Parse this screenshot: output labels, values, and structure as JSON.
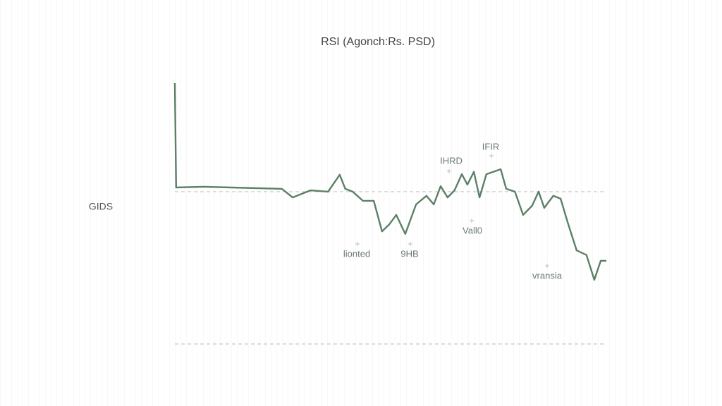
{
  "chart_data": {
    "type": "line",
    "title": "RSI (Agonch:Rs. PSD)",
    "y_label": "GIDS",
    "series": [
      {
        "color": "#5b8066",
        "x": [
          0,
          0.3,
          6.7,
          13.1,
          19.6,
          24.8,
          27.3,
          31.4,
          35.5,
          38.2,
          39.5,
          41.2,
          43.6,
          46.1,
          48.0,
          49.7,
          51.3,
          53.4,
          55.9,
          58.3,
          60.0,
          61.6,
          63.2,
          64.8,
          66.5,
          67.8,
          69.3,
          70.6,
          72.2,
          75.5,
          76.8,
          78.8,
          80.7,
          82.8,
          84.3,
          85.6,
          87.7,
          89.4,
          91.0,
          93.1,
          95.4,
          97.2,
          98.7,
          100
        ],
        "values": [
          100,
          60,
          60.3,
          60,
          59.7,
          59.5,
          56.2,
          58.9,
          58.4,
          64.9,
          59.5,
          58.4,
          54.9,
          54.9,
          43.2,
          45.9,
          49.5,
          42.2,
          53.5,
          56.8,
          53.5,
          60.5,
          56.2,
          58.9,
          65.1,
          61.1,
          66,
          56.2,
          65.1,
          67,
          59.5,
          58.4,
          49.5,
          53,
          58.4,
          52.2,
          56.8,
          55.7,
          46.8,
          35.9,
          34.1,
          24.6,
          31.9,
          31.9
        ]
      }
    ],
    "xlim": [
      0,
      100
    ],
    "ylim": [
      0,
      100
    ],
    "reference_lines": [
      58.4,
      0
    ],
    "annotations": [
      "IHRD",
      "IFIR",
      "Vall0",
      "lionted",
      "9HB",
      "vransia"
    ]
  }
}
